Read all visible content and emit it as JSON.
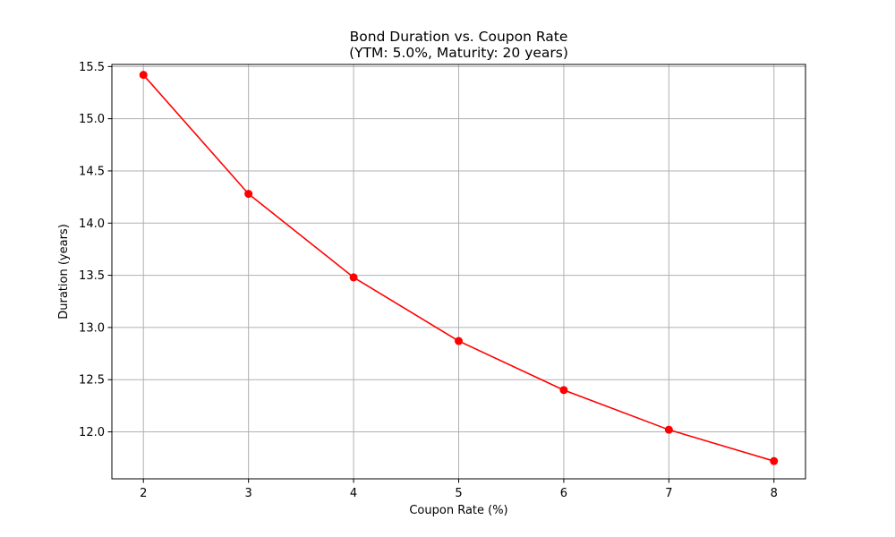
{
  "chart_data": {
    "type": "line",
    "title": "Bond Duration vs. Coupon Rate",
    "subtitle": "(YTM: 5.0%, Maturity: 20 years)",
    "xlabel": "Coupon Rate (%)",
    "ylabel": "Duration (years)",
    "xlim": [
      1.7,
      8.3
    ],
    "ylim": [
      11.55,
      15.52
    ],
    "xticks": [
      2,
      3,
      4,
      5,
      6,
      7,
      8
    ],
    "xtick_labels": [
      "2",
      "3",
      "4",
      "5",
      "6",
      "7",
      "8"
    ],
    "yticks": [
      12.0,
      12.5,
      13.0,
      13.5,
      14.0,
      14.5,
      15.0,
      15.5
    ],
    "ytick_labels": [
      "12.0",
      "12.5",
      "13.0",
      "13.5",
      "14.0",
      "14.5",
      "15.0",
      "15.5"
    ],
    "grid": true,
    "series": [
      {
        "color": "#ff0000",
        "marker": "circle",
        "x": [
          2,
          3,
          4,
          5,
          6,
          7,
          8
        ],
        "y": [
          15.42,
          14.28,
          13.48,
          12.87,
          12.4,
          12.02,
          11.72
        ]
      }
    ]
  }
}
